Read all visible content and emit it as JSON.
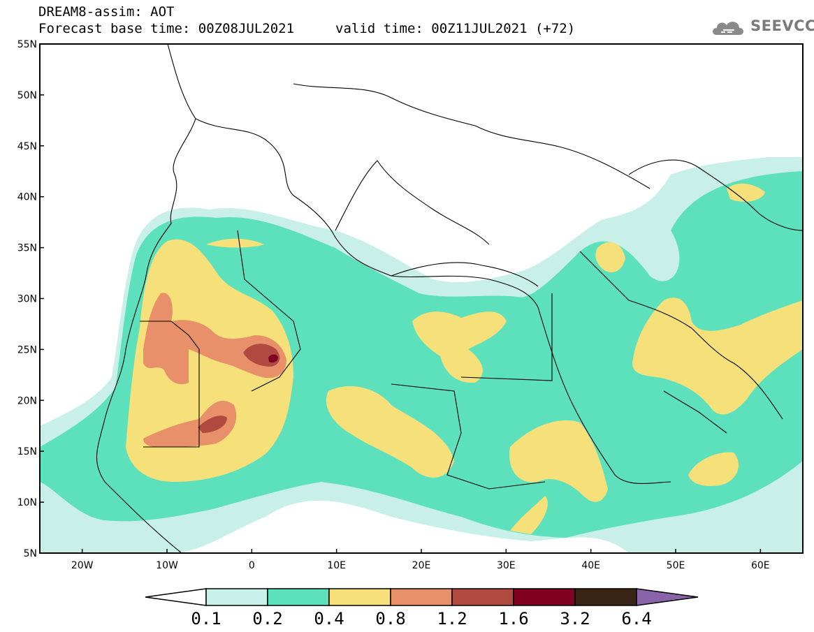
{
  "header": {
    "model_line": "DREAM8-assim: AOT",
    "base_time_line": "Forecast base time: 00Z08JUL2021",
    "valid_time_line": "valid time: 00Z11JUL2021 (+72)"
  },
  "logo": {
    "text": "SEEVCCC",
    "icon": "cloud-icon"
  },
  "map": {
    "projection": "cylindrical",
    "lon_range": [
      -25,
      65
    ],
    "lat_range": [
      5,
      55
    ],
    "lon_ticks": [
      {
        "v": -20,
        "label": "20W"
      },
      {
        "v": -10,
        "label": "10W"
      },
      {
        "v": 0,
        "label": "0"
      },
      {
        "v": 10,
        "label": "10E"
      },
      {
        "v": 20,
        "label": "20E"
      },
      {
        "v": 30,
        "label": "30E"
      },
      {
        "v": 40,
        "label": "40E"
      },
      {
        "v": 50,
        "label": "50E"
      },
      {
        "v": 60,
        "label": "60E"
      }
    ],
    "lat_ticks": [
      {
        "v": 5,
        "label": "5N"
      },
      {
        "v": 10,
        "label": "10N"
      },
      {
        "v": 15,
        "label": "15N"
      },
      {
        "v": 20,
        "label": "20N"
      },
      {
        "v": 25,
        "label": "25N"
      },
      {
        "v": 30,
        "label": "30N"
      },
      {
        "v": 35,
        "label": "35N"
      },
      {
        "v": 40,
        "label": "40N"
      },
      {
        "v": 45,
        "label": "45N"
      },
      {
        "v": 50,
        "label": "50N"
      },
      {
        "v": 55,
        "label": "55N"
      }
    ]
  },
  "colorbar": {
    "levels": [
      "0.1",
      "0.2",
      "0.4",
      "0.8",
      "1.2",
      "1.6",
      "3.2",
      "6.4"
    ],
    "under_color": "#ffffff",
    "colors": [
      "#c8f0e8",
      "#5de0bc",
      "#f5e07a",
      "#e8906a",
      "#b04a40",
      "#800022",
      "#3a2414"
    ],
    "over_color": "#8a64a8"
  },
  "shading_colors": {
    "aot_0_1": "#c8f0e8",
    "aot_0_2": "#5de0bc",
    "aot_0_4": "#f5e07a",
    "aot_0_8": "#e8906a",
    "aot_1_2": "#b04a40",
    "aot_1_6": "#800022"
  }
}
